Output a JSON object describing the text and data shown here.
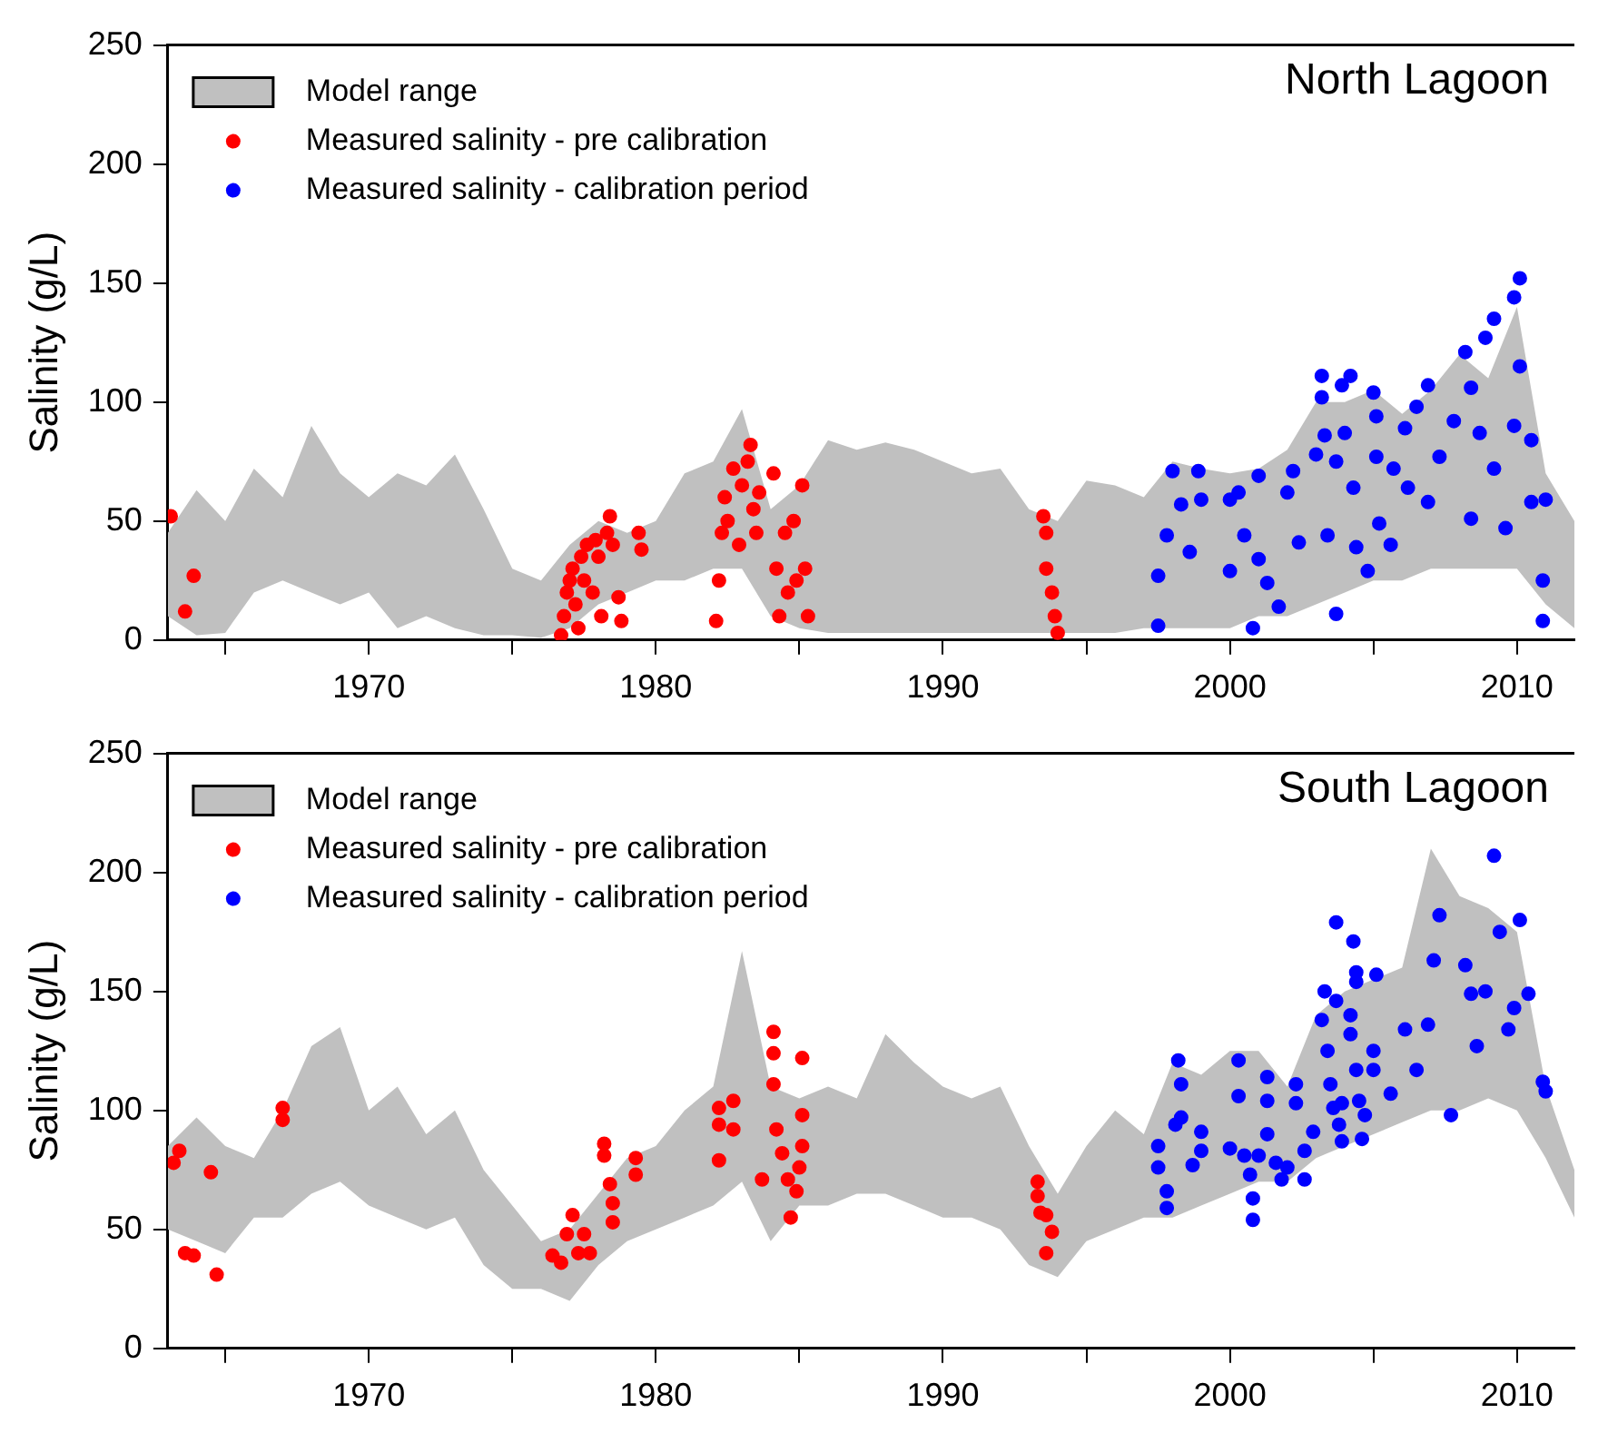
{
  "chart_data": [
    {
      "type": "scatter",
      "title": "North Lagoon",
      "ylabel": "Salinity (g/L)",
      "xlim": [
        1963,
        2012
      ],
      "xticks": [
        {
          "value": 1965,
          "label": null
        },
        1970,
        {
          "value": 1975,
          "label": null
        },
        1980,
        {
          "value": 1985,
          "label": null
        },
        1990,
        {
          "value": 1995,
          "label": null
        },
        2000,
        {
          "value": 2005,
          "label": null
        },
        2010
      ],
      "ylim": [
        0,
        250
      ],
      "yticks": [
        0,
        50,
        100,
        150,
        200,
        250
      ],
      "grid": false,
      "legend": "top left",
      "marker": "circle",
      "series": [
        {
          "name": "Model range",
          "type": "area",
          "color": "#c0c0c0",
          "x": [
            1963,
            1964,
            1965,
            1966,
            1967,
            1968,
            1969,
            1970,
            1971,
            1972,
            1973,
            1974,
            1975,
            1976,
            1977,
            1978,
            1979,
            1980,
            1981,
            1982,
            1983,
            1984,
            1985,
            1986,
            1987,
            1988,
            1989,
            1990,
            1991,
            1992,
            1993,
            1994,
            1995,
            1996,
            1997,
            1998,
            1999,
            2000,
            2001,
            2002,
            2003,
            2004,
            2005,
            2006,
            2007,
            2008,
            2009,
            2010,
            2011,
            2012
          ],
          "values": [
            null,
            null,
            null,
            null,
            null,
            null,
            null,
            null,
            null,
            null,
            null,
            null,
            null,
            null,
            null,
            null,
            null,
            null,
            null,
            null,
            null,
            null,
            null,
            null,
            null,
            null,
            null,
            null,
            null,
            null,
            null,
            null,
            null,
            null,
            null,
            null,
            null,
            null,
            null,
            null,
            null,
            null,
            null,
            null,
            null,
            null,
            null,
            null,
            null,
            null
          ],
          "lower": [
            10,
            2,
            3,
            20,
            25,
            20,
            15,
            20,
            5,
            10,
            5,
            2,
            2,
            1,
            5,
            15,
            20,
            25,
            25,
            30,
            30,
            10,
            5,
            3,
            3,
            3,
            3,
            3,
            3,
            3,
            3,
            3,
            3,
            3,
            5,
            5,
            5,
            5,
            10,
            10,
            15,
            20,
            25,
            25,
            30,
            30,
            30,
            30,
            15,
            5
          ],
          "upper": [
            45,
            63,
            50,
            72,
            60,
            90,
            70,
            60,
            70,
            65,
            78,
            55,
            30,
            25,
            40,
            50,
            45,
            50,
            70,
            75,
            97,
            55,
            65,
            84,
            80,
            83,
            80,
            75,
            70,
            72,
            55,
            50,
            67,
            65,
            60,
            75,
            72,
            70,
            72,
            80,
            100,
            100,
            105,
            95,
            105,
            120,
            110,
            140,
            70,
            50
          ]
        },
        {
          "name": "Measured salinity - pre calibration",
          "color": "#ff0000",
          "x": [
            1963.1,
            1963.6,
            1963.9,
            1976.7,
            1976.8,
            1976.9,
            1977.0,
            1977.1,
            1977.2,
            1977.3,
            1977.4,
            1977.5,
            1977.6,
            1977.8,
            1977.9,
            1978.0,
            1978.1,
            1978.3,
            1978.4,
            1978.5,
            1978.7,
            1978.8,
            1979.4,
            1979.5,
            1982.1,
            1982.2,
            1982.3,
            1982.4,
            1982.5,
            1982.7,
            1982.9,
            1983.0,
            1983.2,
            1983.3,
            1983.4,
            1983.5,
            1983.6,
            1984.1,
            1984.2,
            1984.3,
            1984.5,
            1984.6,
            1984.8,
            1984.9,
            1985.1,
            1985.2,
            1985.3,
            1993.5,
            1993.6,
            1993.6,
            1993.8,
            1993.9,
            1994.0
          ],
          "values": [
            52,
            12,
            27,
            2,
            10,
            20,
            25,
            30,
            15,
            5,
            35,
            25,
            40,
            20,
            42,
            35,
            10,
            45,
            52,
            40,
            18,
            8,
            45,
            38,
            8,
            25,
            45,
            60,
            50,
            72,
            40,
            65,
            75,
            82,
            55,
            45,
            62,
            70,
            30,
            10,
            45,
            20,
            50,
            25,
            65,
            30,
            10,
            52,
            45,
            30,
            20,
            10,
            3
          ]
        },
        {
          "name": "Measured salinity - calibration period",
          "color": "#0000ff",
          "x": [
            1997.5,
            1997.5,
            1997.8,
            1998.0,
            1998.3,
            1998.6,
            1998.9,
            1999.0,
            2000.0,
            2000.3,
            2000.0,
            2000.5,
            2000.8,
            2001.0,
            2001.0,
            2001.3,
            2001.7,
            2002.0,
            2002.2,
            2002.4,
            2003.0,
            2003.2,
            2003.2,
            2003.3,
            2003.4,
            2003.7,
            2003.7,
            2003.9,
            2004.2,
            2004.0,
            2004.3,
            2004.4,
            2004.8,
            2005.0,
            2005.1,
            2005.1,
            2005.2,
            2005.6,
            2005.7,
            2006.1,
            2006.2,
            2006.5,
            2006.9,
            2006.9,
            2007.3,
            2007.8,
            2008.2,
            2008.4,
            2008.4,
            2008.7,
            2008.9,
            2009.2,
            2009.2,
            2009.6,
            2009.9,
            2010.1,
            2010.1,
            2009.9,
            2010.5,
            2010.5,
            2010.9,
            2010.9,
            2011.0
          ],
          "values": [
            6,
            27,
            44,
            71,
            57,
            37,
            71,
            59,
            59,
            62,
            29,
            44,
            5,
            69,
            34,
            24,
            14,
            62,
            71,
            41,
            78,
            111,
            102,
            86,
            44,
            11,
            75,
            107,
            111,
            87,
            64,
            39,
            29,
            104,
            94,
            77,
            49,
            40,
            72,
            89,
            64,
            98,
            107,
            58,
            77,
            92,
            121,
            106,
            51,
            87,
            127,
            135,
            72,
            47,
            144,
            152,
            115,
            90,
            84,
            58,
            25,
            8,
            59
          ]
        }
      ]
    },
    {
      "type": "scatter",
      "title": "South Lagoon",
      "ylabel": "Salinity (g/L)",
      "xlim": [
        1963,
        2012
      ],
      "xticks": [
        {
          "value": 1965,
          "label": null
        },
        1970,
        {
          "value": 1975,
          "label": null
        },
        1980,
        {
          "value": 1985,
          "label": null
        },
        1990,
        {
          "value": 1995,
          "label": null
        },
        2000,
        {
          "value": 2005,
          "label": null
        },
        2010
      ],
      "ylim": [
        0,
        250
      ],
      "yticks": [
        0,
        50,
        100,
        150,
        200,
        250
      ],
      "grid": false,
      "legend": "top left",
      "marker": "circle",
      "series": [
        {
          "name": "Model range",
          "type": "area",
          "color": "#c0c0c0",
          "x": [
            1963,
            1964,
            1965,
            1966,
            1967,
            1968,
            1969,
            1970,
            1971,
            1972,
            1973,
            1974,
            1975,
            1976,
            1977,
            1978,
            1979,
            1980,
            1981,
            1982,
            1983,
            1984,
            1985,
            1986,
            1987,
            1988,
            1989,
            1990,
            1991,
            1992,
            1993,
            1994,
            1995,
            1996,
            1997,
            1998,
            1999,
            2000,
            2001,
            2002,
            2003,
            2004,
            2005,
            2006,
            2007,
            2008,
            2009,
            2010,
            2011,
            2012
          ],
          "values": [
            null,
            null,
            null,
            null,
            null,
            null,
            null,
            null,
            null,
            null,
            null,
            null,
            null,
            null,
            null,
            null,
            null,
            null,
            null,
            null,
            null,
            null,
            null,
            null,
            null,
            null,
            null,
            null,
            null,
            null,
            null,
            null,
            null,
            null,
            null,
            null,
            null,
            null,
            null,
            null,
            null,
            null,
            null,
            null,
            null,
            null,
            null,
            null,
            null,
            null
          ],
          "lower": [
            50,
            45,
            40,
            55,
            55,
            65,
            70,
            60,
            55,
            50,
            55,
            35,
            25,
            25,
            20,
            35,
            45,
            50,
            55,
            60,
            70,
            45,
            60,
            60,
            65,
            65,
            60,
            55,
            55,
            50,
            35,
            30,
            45,
            50,
            55,
            55,
            60,
            65,
            70,
            70,
            80,
            85,
            90,
            95,
            100,
            100,
            105,
            100,
            80,
            55
          ],
          "upper": [
            85,
            97,
            85,
            80,
            100,
            127,
            135,
            100,
            110,
            90,
            100,
            75,
            60,
            45,
            50,
            65,
            80,
            85,
            100,
            110,
            167,
            110,
            105,
            110,
            105,
            132,
            120,
            110,
            105,
            110,
            85,
            65,
            85,
            100,
            90,
            120,
            115,
            125,
            125,
            110,
            140,
            150,
            155,
            160,
            210,
            190,
            185,
            175,
            110,
            75
          ]
        },
        {
          "name": "Measured salinity - pre calibration",
          "color": "#ff0000",
          "x": [
            1963.2,
            1963.4,
            1963.6,
            1963.9,
            1964.5,
            1964.7,
            1967.0,
            1967.0,
            1976.4,
            1976.7,
            1976.9,
            1977.1,
            1977.3,
            1977.5,
            1977.7,
            1978.2,
            1978.2,
            1978.4,
            1978.5,
            1978.5,
            1979.3,
            1979.3,
            1982.2,
            1982.2,
            1982.2,
            1982.7,
            1982.7,
            1983.7,
            1984.1,
            1984.1,
            1984.1,
            1984.2,
            1984.4,
            1984.6,
            1984.7,
            1984.9,
            1985.0,
            1985.1,
            1985.1,
            1985.1,
            1993.3,
            1993.3,
            1993.4,
            1993.6,
            1993.8,
            1993.6
          ],
          "values": [
            78,
            83,
            40,
            39,
            74,
            31,
            101,
            96,
            39,
            36,
            48,
            56,
            40,
            48,
            40,
            86,
            81,
            69,
            61,
            53,
            80,
            73,
            101,
            79,
            94,
            104,
            92,
            71,
            133,
            124,
            111,
            92,
            82,
            71,
            55,
            66,
            76,
            122,
            98,
            85,
            70,
            64,
            57,
            56,
            49,
            40
          ]
        },
        {
          "name": "Measured salinity - calibration period",
          "color": "#0000ff",
          "x": [
            1997.5,
            1997.5,
            1997.8,
            1997.8,
            1998.1,
            1998.2,
            1998.3,
            1998.3,
            1998.7,
            1999.0,
            1999.0,
            2000.0,
            2000.3,
            2000.3,
            2000.5,
            2000.7,
            2000.8,
            2000.8,
            2001.0,
            2001.3,
            2001.3,
            2001.3,
            2001.6,
            2001.8,
            2002.0,
            2002.3,
            2002.3,
            2002.6,
            2002.6,
            2002.9,
            2003.3,
            2003.2,
            2003.4,
            2003.5,
            2003.6,
            2003.7,
            2003.7,
            2003.8,
            2003.9,
            2003.9,
            2004.2,
            2004.2,
            2004.3,
            2004.4,
            2004.4,
            2004.4,
            2004.5,
            2004.6,
            2004.7,
            2005.1,
            2005.0,
            2005.0,
            2005.6,
            2006.1,
            2006.5,
            2006.9,
            2007.1,
            2007.3,
            2007.7,
            2008.2,
            2008.4,
            2008.6,
            2008.9,
            2009.2,
            2009.4,
            2009.7,
            2009.9,
            2010.1,
            2010.4,
            2010.9,
            2011.0
          ],
          "values": [
            85,
            76,
            66,
            59,
            94,
            121,
            111,
            97,
            77,
            91,
            83,
            84,
            121,
            106,
            81,
            73,
            63,
            54,
            81,
            114,
            104,
            90,
            78,
            71,
            76,
            111,
            103,
            83,
            71,
            91,
            150,
            138,
            125,
            111,
            101,
            146,
            179,
            94,
            87,
            103,
            140,
            132,
            171,
            158,
            154,
            117,
            104,
            88,
            98,
            157,
            125,
            117,
            107,
            134,
            117,
            136,
            163,
            182,
            98,
            161,
            149,
            127,
            150,
            207,
            175,
            134,
            143,
            180,
            149,
            112,
            108
          ]
        }
      ]
    }
  ]
}
